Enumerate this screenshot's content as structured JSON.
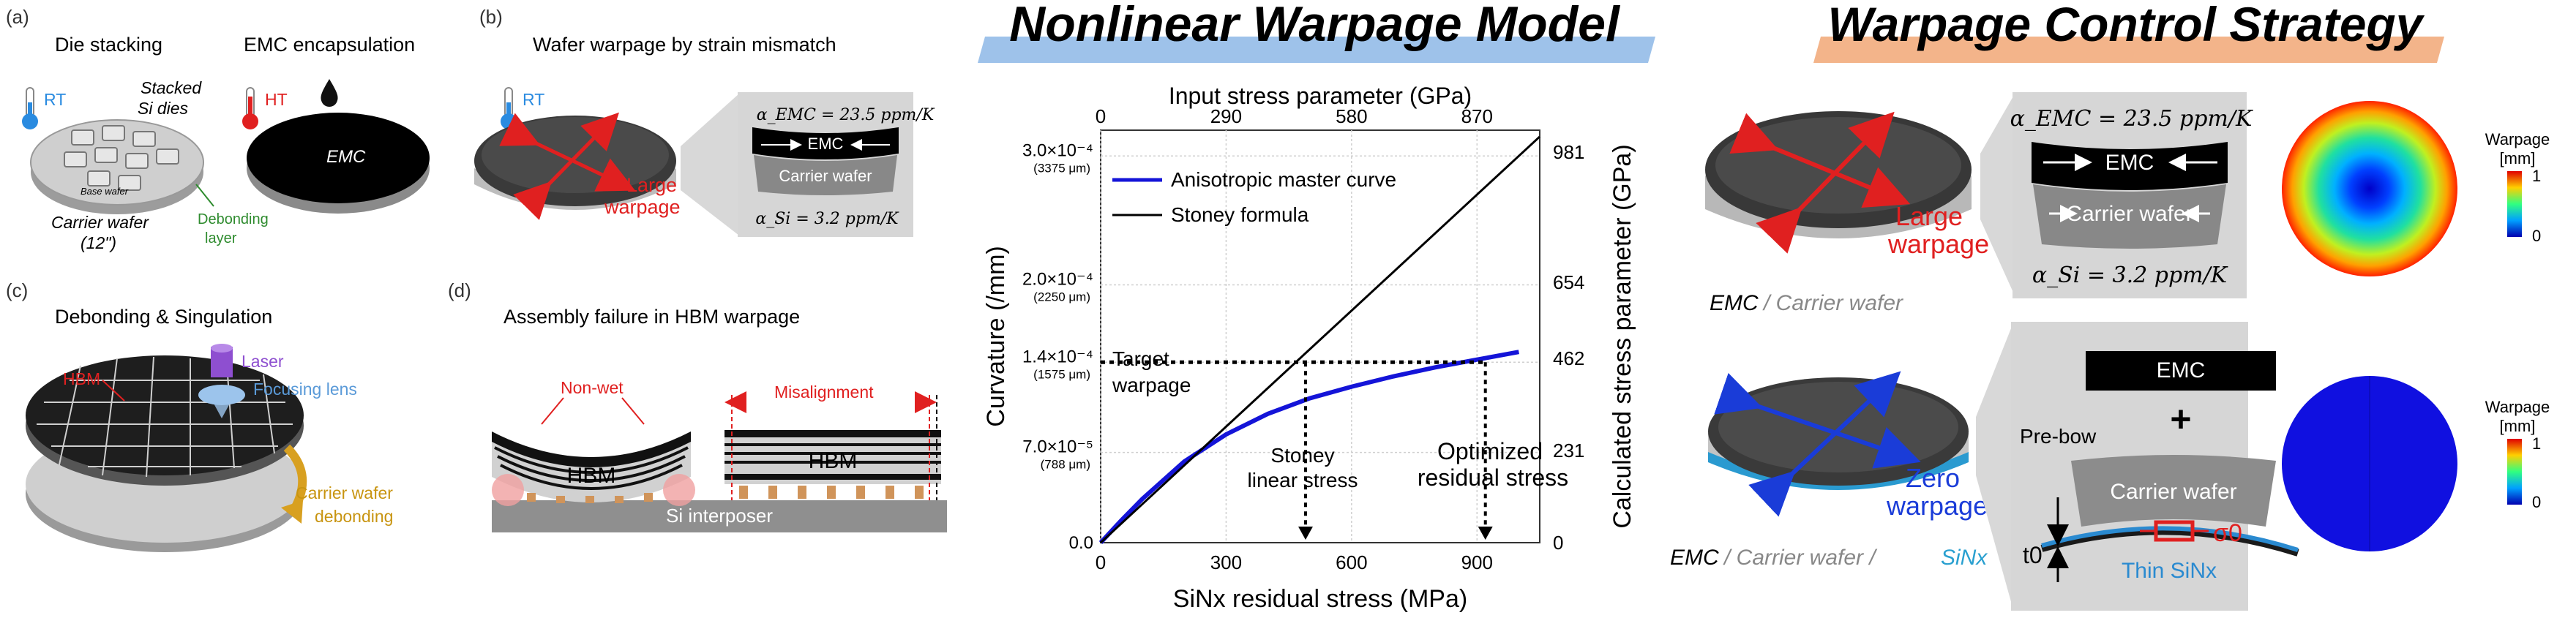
{
  "panel_a": {
    "label": "(a)",
    "title_left": "Die stacking",
    "title_right": "EMC encapsulation",
    "rt": "RT",
    "ht": "HT",
    "stacked": "Stacked",
    "si_dies": "Si dies",
    "base_wafer": "Base wafer",
    "carrier_wafer": "Carrier wafer",
    "size": "(12\")",
    "debonding": "Debonding",
    "layer": "layer",
    "emc": "EMC"
  },
  "panel_b": {
    "label": "(b)",
    "title": "Wafer warpage by strain mismatch",
    "rt": "RT",
    "large": "Large",
    "warpage": "warpage",
    "alpha_emc": "α_EMC = 23.5 ppm/K",
    "emc": "EMC",
    "carrier": "Carrier wafer",
    "alpha_si": "α_Si = 3.2 ppm/K"
  },
  "panel_c": {
    "label": "(c)",
    "title": "Debonding & Singulation",
    "hbm": "HBM",
    "laser": "Laser",
    "lens": "Focusing lens",
    "cw1": "Carrier wafer",
    "cw2": "debonding"
  },
  "panel_d": {
    "label": "(d)",
    "title": "Assembly failure in HBM warpage",
    "nonwet": "Non-wet",
    "misalign": "Misalignment",
    "hbm": "HBM",
    "interposer": "Si interposer"
  },
  "center": {
    "title": "Nonlinear Warpage Model",
    "target1": "Target",
    "target2": "warpage",
    "stoney1": "Stoney",
    "stoney2": "linear stress",
    "opt1": "Optimized",
    "opt2": "residual stress"
  },
  "chart_data": {
    "type": "line",
    "xlabel": "SiNx residual stress (MPa)",
    "top_xlabel": "Input stress parameter (GPa)",
    "ylabel": "Curvature (/mm)",
    "right_ylabel": "Calculated stress parameter (GPa)",
    "xlim": [
      0,
      1050
    ],
    "ylim": [
      0,
      0.00032
    ],
    "x_ticks": [
      0,
      300,
      600,
      900
    ],
    "top_ticks": [
      {
        "x": 0,
        "label": "0"
      },
      {
        "x": 300,
        "label": "290"
      },
      {
        "x": 600,
        "label": "580"
      },
      {
        "x": 900,
        "label": "870"
      }
    ],
    "y_ticks": [
      {
        "y": 0,
        "label": "0.0",
        "sub": ""
      },
      {
        "y": 7e-05,
        "label": "7.0×10⁻⁵",
        "sub": "(788 μm)"
      },
      {
        "y": 0.00014,
        "label": "1.4×10⁻⁴",
        "sub": "(1575 μm)"
      },
      {
        "y": 0.0002,
        "label": "2.0×10⁻⁴",
        "sub": "(2250 μm)"
      },
      {
        "y": 0.0003,
        "label": "3.0×10⁻⁴",
        "sub": "(3375 μm)"
      }
    ],
    "right_ticks": [
      {
        "y": 0,
        "label": "0"
      },
      {
        "y": 7.15e-05,
        "label": "231"
      },
      {
        "y": 0.000143,
        "label": "462"
      },
      {
        "y": 0.000202,
        "label": "654"
      },
      {
        "y": 0.000303,
        "label": "981"
      }
    ],
    "target_y": 0.00014,
    "stoney_x": 490,
    "optimized_x": 920,
    "grid": true,
    "legend": "top-left",
    "series": [
      {
        "name": "Anisotropic master curve",
        "color": "#1414d8",
        "x": [
          0,
          50,
          100,
          200,
          300,
          400,
          500,
          600,
          700,
          800,
          900,
          1000
        ],
        "y": [
          0,
          1.75e-05,
          3.4e-05,
          6.3e-05,
          8.4e-05,
          0.0001,
          0.000112,
          0.000121,
          0.000129,
          0.000136,
          0.000142,
          0.000148
        ]
      },
      {
        "name": "Stoney formula",
        "color": "#000000",
        "x": [
          0,
          1050
        ],
        "y": [
          0,
          0.000315
        ]
      }
    ]
  },
  "right": {
    "title": "Warpage Control Strategy",
    "alpha_emc": "α_EMC = 23.5 ppm/K",
    "emc": "EMC",
    "carrier": "Carrier wafer",
    "alpha_si": "α_Si = 3.2 ppm/K",
    "large": "Large",
    "warpage": "warpage",
    "cap1_a": "EMC",
    "cap1_b": " / Carrier wafer",
    "zero": "Zero",
    "warpage2": "warpage",
    "cap2_a": "EMC",
    "cap2_b": " / Carrier wafer / ",
    "cap2_c": "SiNx",
    "emc_box": "EMC",
    "plus": "+",
    "prebow": "Pre-bow",
    "carrier2": "Carrier wafer",
    "t0": "t0",
    "sigma0": "σ0",
    "thin": "Thin SiNx",
    "map_title1": "Warpage",
    "map_unit": "[mm]",
    "map_max": "1",
    "map_min": "0",
    "map_title2": "Warpage",
    "map_unit2": "[mm]",
    "map_max2": "1",
    "map_min2": "0"
  },
  "colors": {
    "blue_curve": "#1414d8",
    "red": "#e02020",
    "title_blue_bar": "#9ec2ea",
    "title_orange_bar": "#f3b48a",
    "uniform_map": "#1010e0"
  }
}
